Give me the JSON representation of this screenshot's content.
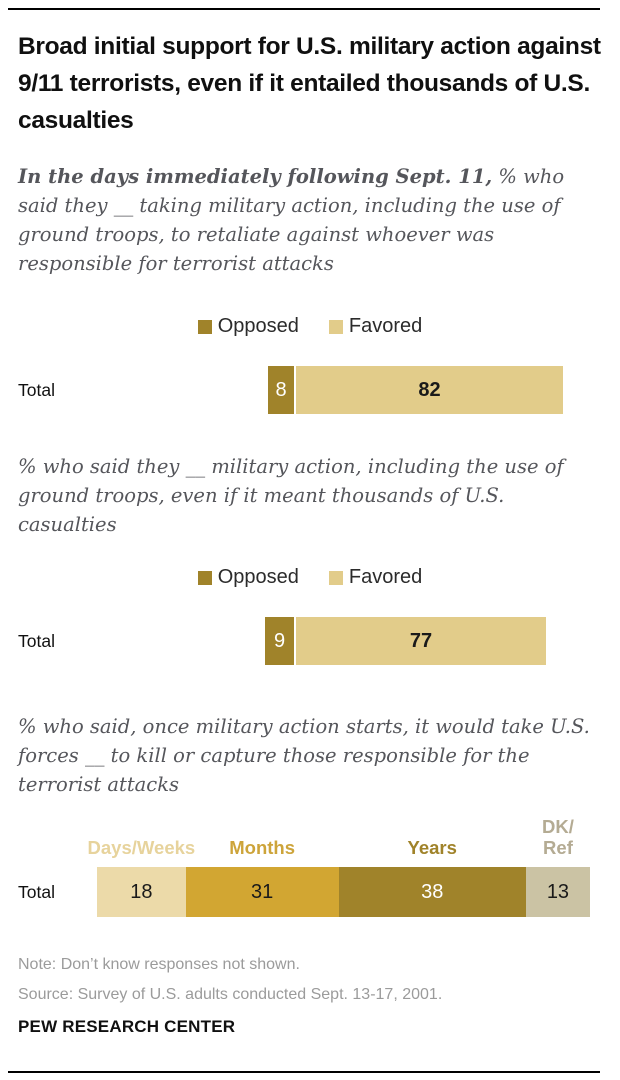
{
  "header": {
    "title": "Broad initial support for U.S. military action against 9/11 terrorists, even if it entailed thousands of U.S. casualties"
  },
  "colors": {
    "dark_gold": "#a0832a",
    "gold": "#d2a632",
    "light_tan": "#e2cc8a",
    "cream": "#ecdaa9",
    "gray_tan": "#cbc3a4",
    "question_text": "#55565b",
    "note_text": "#9b9b9b"
  },
  "chart_data": [
    {
      "type": "bar",
      "stacked": true,
      "orientation": "horizontal",
      "lead_in": "In the days immediately following Sept. 11,",
      "question": " % who said they __ taking military action, including the use of ground troops, to retaliate against whoever was responsible for terrorist attacks",
      "categories": [
        "Total"
      ],
      "legend": [
        "Opposed",
        "Favored"
      ],
      "legend_position": "top-center",
      "xlim": [
        0,
        100
      ],
      "series": [
        {
          "name": "Opposed",
          "values": [
            8
          ],
          "color": "#a0832a",
          "value_color": "#ffffff",
          "value_bold": false
        },
        {
          "name": "Favored",
          "values": [
            82
          ],
          "color": "#e2cc8a",
          "value_color": "#1a1a1a",
          "value_bold": true
        }
      ]
    },
    {
      "type": "bar",
      "stacked": true,
      "orientation": "horizontal",
      "question": "% who said they __ military action, including the use of ground troops, even if it meant thousands of U.S. casualties",
      "categories": [
        "Total"
      ],
      "legend": [
        "Opposed",
        "Favored"
      ],
      "legend_position": "top-center",
      "xlim": [
        0,
        100
      ],
      "series": [
        {
          "name": "Opposed",
          "values": [
            9
          ],
          "color": "#a0832a",
          "value_color": "#ffffff",
          "value_bold": false
        },
        {
          "name": "Favored",
          "values": [
            77
          ],
          "color": "#e2cc8a",
          "value_color": "#1a1a1a",
          "value_bold": true
        }
      ]
    },
    {
      "type": "bar",
      "stacked": true,
      "orientation": "horizontal",
      "question": "% who said, once military action starts, it would take U.S. forces __ to kill or capture those responsible for the terrorist attacks",
      "categories": [
        "Total"
      ],
      "legend": [
        "Days/Weeks",
        "Months",
        "Years",
        "DK/Ref"
      ],
      "legend_position": "headers-above-segments",
      "xlim": [
        0,
        100
      ],
      "series": [
        {
          "name": "Days/Weeks",
          "header_lines": [
            "Days/Weeks"
          ],
          "values": [
            18
          ],
          "color": "#ecdaa9",
          "header_color": "#e7d39c",
          "value_color": "#1a1a1a",
          "value_bold": false
        },
        {
          "name": "Months",
          "header_lines": [
            "Months"
          ],
          "values": [
            31
          ],
          "color": "#d2a632",
          "header_color": "#cda43a",
          "value_color": "#1a1a1a",
          "value_bold": false
        },
        {
          "name": "Years",
          "header_lines": [
            "Years"
          ],
          "values": [
            38
          ],
          "color": "#a0832a",
          "header_color": "#a0832a",
          "value_color": "#ffffff",
          "value_bold": false
        },
        {
          "name": "DK/Ref",
          "header_lines": [
            "DK/",
            "Ref"
          ],
          "values": [
            13
          ],
          "color": "#cbc3a4",
          "header_color": "#b4ab93",
          "value_color": "#1a1a1a",
          "value_bold": false
        }
      ]
    }
  ],
  "footer": {
    "note": "Note: Don’t know responses not shown.",
    "source": "Source: Survey of U.S. adults conducted Sept. 13-17, 2001.",
    "brand": "PEW RESEARCH CENTER"
  }
}
